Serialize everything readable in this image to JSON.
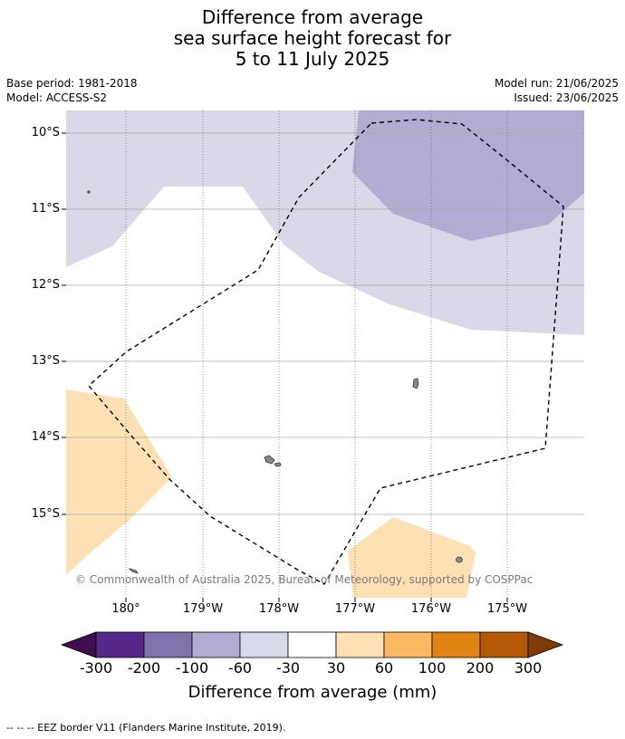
{
  "title": {
    "line1": "Difference from average",
    "line2": "sea surface height forecast for",
    "line3": "5 to 11 July 2025"
  },
  "meta": {
    "base_period": "Base period: 1981-2018",
    "model": "Model: ACCESS-S2",
    "model_run": "Model run: 21/06/2025",
    "issued": "Issued: 23/06/2025"
  },
  "map": {
    "lat_labels": [
      "10°S",
      "11°S",
      "12°S",
      "13°S",
      "14°S",
      "15°S"
    ],
    "lon_labels": [
      "180°",
      "179°W",
      "178°W",
      "177°W",
      "176°W",
      "175°W"
    ],
    "copyright": "© Commonwealth of Australia 2025, Bureau of Meteorology, supported by COSPPac",
    "colors": {
      "light_purple": "#d8d8e8",
      "mid_purple": "#b2abd2",
      "light_orange": "#fde0b4"
    }
  },
  "colorbar": {
    "title": "Difference from average (mm)",
    "labels": [
      "-300",
      "-200",
      "-100",
      "-60",
      "-30",
      "30",
      "60",
      "100",
      "200",
      "300"
    ],
    "colors": [
      "#3d0e52",
      "#542788",
      "#8073ac",
      "#b2abd2",
      "#d8daeb",
      "#ffffff",
      "#fee0b6",
      "#fdb863",
      "#e08214",
      "#b35806",
      "#7f3b08"
    ]
  },
  "footnote": "--  --  -- EEZ border V11 (Flanders Marine Institute, 2019)."
}
